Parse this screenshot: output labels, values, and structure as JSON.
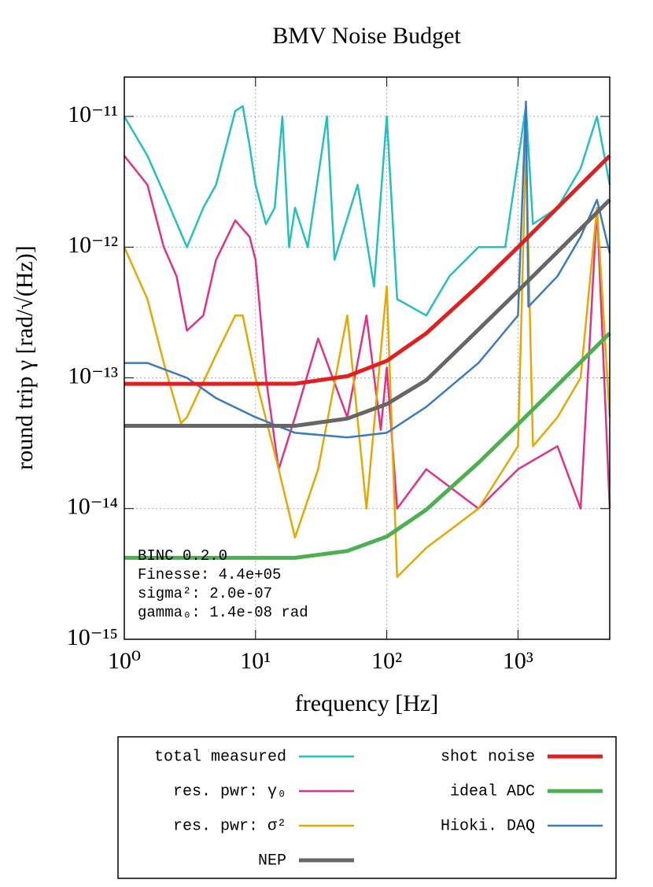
{
  "chart_data": {
    "type": "line",
    "title": "BMV Noise Budget",
    "x_label": "frequency [Hz]",
    "y_label": "round trip γ [rad/√(Hz)]",
    "xscale": "log",
    "yscale": "log",
    "grid": true,
    "legend": "below",
    "xlim": [
      1,
      5000
    ],
    "ylim": [
      1e-15,
      2e-11
    ],
    "xticks": [
      {
        "value": 1,
        "label": "10⁰"
      },
      {
        "value": 10,
        "label": "10¹"
      },
      {
        "value": 100,
        "label": "10²"
      },
      {
        "value": 1000,
        "label": "10³"
      }
    ],
    "yticks": [
      {
        "value": 1e-15,
        "label": "10⁻¹⁵"
      },
      {
        "value": 1e-14,
        "label": "10⁻¹⁴"
      },
      {
        "value": 1e-13,
        "label": "10⁻¹³"
      },
      {
        "value": 1e-12,
        "label": "10⁻¹²"
      },
      {
        "value": 1e-11,
        "label": "10⁻¹¹"
      }
    ],
    "annotations": [
      "BINC 0.2.0",
      "Finesse: 4.4e+05",
      "sigma²:  2.0e-07",
      "gamma₀:  1.4e-08 rad"
    ],
    "series": [
      {
        "name": "total measured",
        "color": "#22c0c0",
        "x": [
          1,
          1.5,
          2,
          3,
          4,
          5,
          7,
          8,
          9,
          10,
          12,
          14,
          16,
          18,
          20,
          25,
          35,
          40,
          60,
          80,
          100,
          120,
          200,
          300,
          500,
          800,
          1150,
          1300,
          2000,
          3000,
          4000,
          5000
        ],
        "values": [
          1e-11,
          5e-12,
          2.6e-12,
          1e-12,
          2e-12,
          3e-12,
          1.1e-11,
          1.2e-11,
          6e-12,
          3e-12,
          1.5e-12,
          2e-12,
          1e-11,
          1e-12,
          2e-12,
          1e-12,
          1e-11,
          8e-13,
          3e-12,
          5e-13,
          1e-11,
          4e-13,
          3e-13,
          6e-13,
          1e-12,
          1e-12,
          1.2e-11,
          1.5e-12,
          2e-12,
          4e-12,
          1e-11,
          3e-12
        ]
      },
      {
        "name": "shot noise",
        "color": "#e02020",
        "x": [
          1,
          2,
          5,
          10,
          20,
          50,
          100,
          200,
          500,
          1000,
          2000,
          5000
        ],
        "values": [
          9e-14,
          9e-14,
          9e-14,
          9.01e-14,
          9.02e-14,
          1.03e-13,
          1.35e-13,
          2.19e-13,
          5.08e-13,
          1e-12,
          2e-12,
          5e-12
        ]
      },
      {
        "name": "res. pwr: γ₀",
        "color": "#e0308a",
        "x": [
          1,
          1.5,
          2,
          2.5,
          3,
          4,
          5,
          7,
          9,
          10,
          12,
          15,
          20,
          30,
          50,
          70,
          90,
          100,
          120,
          200,
          500,
          1000,
          2000,
          3000,
          4000,
          5000
        ],
        "values": [
          5e-12,
          3e-12,
          1e-12,
          6e-13,
          2.3e-13,
          3e-13,
          8e-13,
          1.6e-12,
          1.2e-12,
          8e-13,
          1e-13,
          2e-14,
          5e-14,
          2e-13,
          5e-14,
          3e-13,
          4e-14,
          1.2e-13,
          1e-14,
          2e-14,
          1e-14,
          2e-14,
          3e-14,
          1e-14,
          2e-12,
          1e-14
        ]
      },
      {
        "name": "ideal ADC",
        "color": "#4cb050",
        "x": [
          1,
          2,
          5,
          10,
          20,
          50,
          100,
          200,
          500,
          1000,
          2000,
          5000
        ],
        "values": [
          4.2e-15,
          4.2e-15,
          4.2e-15,
          4.2e-15,
          4.2e-15,
          4.74e-15,
          6.1e-15,
          9.8e-15,
          2.24e-14,
          4.42e-14,
          8.8e-14,
          2.2e-13
        ]
      },
      {
        "name": "res. pwr: σ²",
        "color": "#e6a800",
        "x": [
          1,
          1.5,
          2,
          2.7,
          3,
          5,
          7,
          8,
          10,
          15,
          20,
          30,
          50,
          70,
          100,
          120,
          200,
          500,
          1000,
          1150,
          1300,
          2000,
          3000,
          4000,
          5000
        ],
        "values": [
          1e-12,
          4e-13,
          1.3e-13,
          4.5e-14,
          5e-14,
          1.5e-13,
          3e-13,
          3e-13,
          1e-13,
          2e-14,
          6e-15,
          2e-14,
          3e-13,
          1e-14,
          5e-13,
          3e-15,
          5e-15,
          1e-14,
          3e-14,
          6e-12,
          3e-14,
          5e-14,
          1e-13,
          2e-12,
          5e-14
        ]
      },
      {
        "name": "Hioki. DAQ",
        "color": "#3a7abf",
        "x": [
          1,
          1.5,
          3,
          5,
          10,
          20,
          50,
          100,
          200,
          500,
          1000,
          1150,
          1200,
          2000,
          3000,
          4000,
          5000
        ],
        "values": [
          1.3e-13,
          1.3e-13,
          1e-13,
          7e-14,
          5e-14,
          3.8e-14,
          3.5e-14,
          3.8e-14,
          6e-14,
          1.3e-13,
          3e-13,
          1.3e-11,
          3.5e-13,
          6e-13,
          1.2e-12,
          2.3e-12,
          9e-13
        ]
      },
      {
        "name": "NEP",
        "color": "#666666",
        "x": [
          1,
          2,
          5,
          10,
          20,
          50,
          100,
          200,
          500,
          1000,
          2000,
          5000
        ],
        "values": [
          4.3e-14,
          4.3e-14,
          4.3e-14,
          4.3e-14,
          4.3e-14,
          4.88e-14,
          6.3e-14,
          9.6e-14,
          2.34e-13,
          4.62e-13,
          9.2e-13,
          2.3e-12
        ]
      }
    ]
  }
}
